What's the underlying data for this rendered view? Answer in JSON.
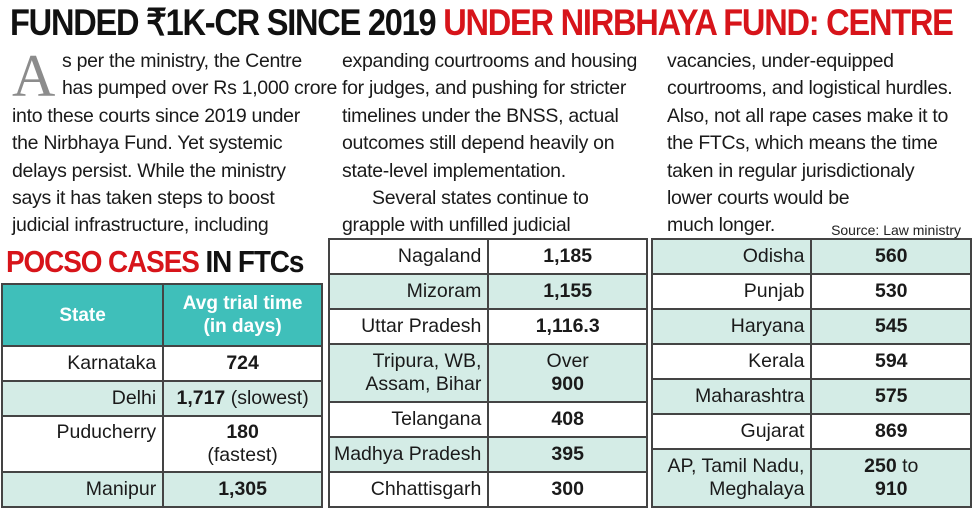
{
  "headline": {
    "part1": "FUNDED ₹1K-CR SINCE 2019 ",
    "part2": "UNDER NIRBHAYA FUND: CENTRE"
  },
  "article": {
    "dropcap": "A",
    "col1": [
      "s per the ministry, the Centre",
      "has pumped over Rs 1,000 crore",
      "into these courts since 2019 under",
      "the Nirbhaya Fund. Yet systemic",
      "delays persist. While the ministry",
      "says it has taken steps to boost",
      "judicial infrastructure, including"
    ],
    "col2": [
      "expanding courtrooms and housing",
      "for judges, and pushing for stricter",
      "timelines under the BNSS, actual",
      "outcomes still depend heavily on",
      "state-level implementation.",
      "Several states continue to",
      "grapple with unfilled judicial"
    ],
    "col3": [
      "vacancies, under-equipped",
      "courtrooms, and logistical hurdles.",
      "Also, not all rape cases make it to",
      "the FTCs, which means the time",
      "taken in regular jurisdictionaly",
      "lower courts would be",
      "much longer."
    ]
  },
  "source": "Source: Law ministry",
  "table_title": {
    "red": "POCSO CASES",
    "black": " IN FTCs"
  },
  "table_header": {
    "state": "State",
    "avg_line1": "Avg trial time",
    "avg_line2": "(in days)"
  },
  "table1": [
    {
      "state": "Karnataka",
      "value": "724",
      "note": ""
    },
    {
      "state": "Delhi",
      "value": "1,717",
      "note": " (slowest)"
    },
    {
      "state": "Puducherry",
      "value": "180",
      "note": "(fastest)"
    },
    {
      "state": "Manipur",
      "value": "1,305",
      "note": ""
    }
  ],
  "table2": [
    {
      "state": "Nagaland",
      "value": "1,185"
    },
    {
      "state": "Mizoram",
      "value": "1,155"
    },
    {
      "state": "Uttar Pradesh",
      "value": "1,116.3"
    },
    {
      "state_l1": "Tripura, WB,",
      "state_l2": "Assam, Bihar",
      "value_l1": "Over",
      "value_l2": "900"
    },
    {
      "state": "Telangana",
      "value": "408"
    },
    {
      "state": "Madhya Pradesh",
      "value": "395"
    },
    {
      "state": "Chhattisgarh",
      "value": "300"
    }
  ],
  "table3": [
    {
      "state": "Odisha",
      "value": "560"
    },
    {
      "state": "Punjab",
      "value": "530"
    },
    {
      "state": "Haryana",
      "value": "545"
    },
    {
      "state": "Kerala",
      "value": "594"
    },
    {
      "state": "Maharashtra",
      "value": "575"
    },
    {
      "state": "Gujarat",
      "value": "869"
    },
    {
      "state_l1": "AP, Tamil Nadu,",
      "state_l2": "Meghalaya",
      "value_l1": "250",
      "value_mid": " to",
      "value_l2": "910"
    }
  ],
  "colors": {
    "headline_red": "#d7141a",
    "header_teal": "#3fbfba",
    "row_tint": "#d4ece6"
  }
}
